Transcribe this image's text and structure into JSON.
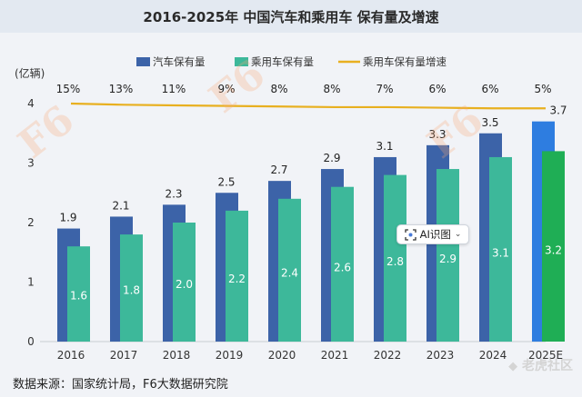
{
  "title": "2016-2025年 中国汽车和乘用车 保有量及增速",
  "source_note": "数据来源：国家统计局，F6大数据研究院",
  "ai_chip": {
    "label": "AI识图",
    "icon": "ai-scan-icon"
  },
  "watermark_text": "老虎社区",
  "colors": {
    "car_total": "#3c63a8",
    "passenger": "#3db89a",
    "growth_line": "#e8b020",
    "forecast_car_total": "#2e7de0",
    "forecast_passenger": "#1fae55"
  },
  "chart_data": {
    "type": "bar",
    "y_unit_label": "(亿辆)",
    "categories": [
      "2016",
      "2017",
      "2018",
      "2019",
      "2020",
      "2021",
      "2022",
      "2023",
      "2024",
      "2025E"
    ],
    "ylim": [
      0,
      4.6
    ],
    "yticks": [
      0,
      1,
      2,
      3,
      4
    ],
    "grid": false,
    "legend_position": "top",
    "series": [
      {
        "name": "汽车保有量",
        "values": [
          1.9,
          2.1,
          2.3,
          2.5,
          2.7,
          2.9,
          3.1,
          3.3,
          3.5,
          3.7
        ]
      },
      {
        "name": "乘用车保有量",
        "values": [
          1.6,
          1.8,
          2.0,
          2.2,
          2.4,
          2.6,
          2.8,
          2.9,
          3.1,
          3.2
        ]
      }
    ],
    "line_series": {
      "name": "乘用车保有量增速",
      "labels": [
        "15%",
        "13%",
        "11%",
        "9%",
        "8%",
        "8%",
        "7%",
        "6%",
        "6%",
        "5%"
      ],
      "y_level": [
        4.0,
        3.98,
        3.97,
        3.96,
        3.95,
        3.94,
        3.94,
        3.93,
        3.92,
        3.92
      ]
    },
    "total_labels": [
      "1.9",
      "2.1",
      "2.3",
      "2.5",
      "2.7",
      "2.9",
      "3.1",
      "3.3",
      "3.5",
      "3.7"
    ],
    "passenger_labels": [
      "1.6",
      "1.8",
      "2.0",
      "2.2",
      "2.4",
      "2.6",
      "2.8",
      "2.9",
      "3.1",
      "3.2"
    ]
  }
}
